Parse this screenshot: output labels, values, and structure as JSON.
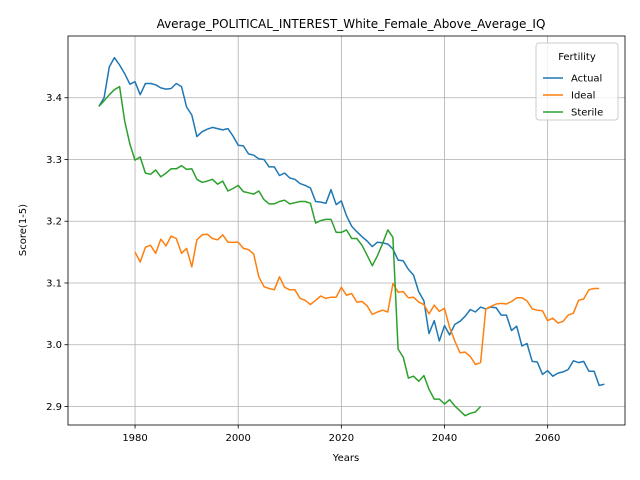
{
  "chart_data": {
    "type": "line",
    "title": "Average_POLITICAL_INTEREST_White_Female_Above_Average_IQ",
    "xlabel": "Years",
    "ylabel": "Score(1-5)",
    "xlim": [
      1967,
      2075
    ],
    "ylim": [
      2.87,
      3.5
    ],
    "xticks": [
      1980,
      2000,
      2020,
      2040,
      2060
    ],
    "yticks": [
      2.9,
      3.0,
      3.1,
      3.2,
      3.3,
      3.4
    ],
    "grid": true,
    "legend": {
      "title": "Fertility",
      "placement": "top-right"
    },
    "series": [
      {
        "name": "Actual",
        "color": "#1f77b4",
        "points": [
          [
            1973,
            3.386
          ],
          [
            1974,
            3.4
          ],
          [
            1975,
            3.45
          ],
          [
            1976,
            3.465
          ],
          [
            1977,
            3.453
          ],
          [
            1978,
            3.439
          ],
          [
            1979,
            3.422
          ],
          [
            1980,
            3.426
          ],
          [
            1981,
            3.405
          ],
          [
            1982,
            3.423
          ],
          [
            1983,
            3.423
          ],
          [
            1984,
            3.421
          ],
          [
            1985,
            3.416
          ],
          [
            1986,
            3.414
          ],
          [
            1987,
            3.415
          ],
          [
            1988,
            3.423
          ],
          [
            1989,
            3.418
          ],
          [
            1990,
            3.385
          ],
          [
            1991,
            3.372
          ],
          [
            1992,
            3.337
          ],
          [
            1993,
            3.345
          ],
          [
            1994,
            3.349
          ],
          [
            1995,
            3.352
          ],
          [
            1996,
            3.35
          ],
          [
            1997,
            3.348
          ],
          [
            1998,
            3.35
          ],
          [
            1999,
            3.338
          ],
          [
            2000,
            3.323
          ],
          [
            2001,
            3.322
          ],
          [
            2002,
            3.309
          ],
          [
            2003,
            3.307
          ],
          [
            2004,
            3.301
          ],
          [
            2005,
            3.3
          ],
          [
            2006,
            3.288
          ],
          [
            2007,
            3.288
          ],
          [
            2008,
            3.274
          ],
          [
            2009,
            3.278
          ],
          [
            2010,
            3.27
          ],
          [
            2011,
            3.268
          ],
          [
            2012,
            3.261
          ],
          [
            2013,
            3.258
          ],
          [
            2014,
            3.254
          ],
          [
            2015,
            3.232
          ],
          [
            2016,
            3.231
          ],
          [
            2017,
            3.229
          ],
          [
            2018,
            3.251
          ],
          [
            2019,
            3.227
          ],
          [
            2020,
            3.233
          ],
          [
            2021,
            3.209
          ],
          [
            2022,
            3.192
          ],
          [
            2023,
            3.183
          ],
          [
            2024,
            3.175
          ],
          [
            2025,
            3.168
          ],
          [
            2026,
            3.159
          ],
          [
            2027,
            3.166
          ],
          [
            2028,
            3.165
          ],
          [
            2029,
            3.163
          ],
          [
            2030,
            3.155
          ],
          [
            2031,
            3.137
          ],
          [
            2032,
            3.136
          ],
          [
            2033,
            3.122
          ],
          [
            2034,
            3.113
          ],
          [
            2035,
            3.086
          ],
          [
            2036,
            3.071
          ],
          [
            2037,
            3.018
          ],
          [
            2038,
            3.039
          ],
          [
            2039,
            3.006
          ],
          [
            2040,
            3.031
          ],
          [
            2041,
            3.016
          ],
          [
            2042,
            3.033
          ],
          [
            2043,
            3.038
          ],
          [
            2044,
            3.046
          ],
          [
            2045,
            3.057
          ],
          [
            2046,
            3.053
          ],
          [
            2047,
            3.061
          ],
          [
            2048,
            3.058
          ],
          [
            2049,
            3.061
          ],
          [
            2050,
            3.06
          ],
          [
            2051,
            3.048
          ],
          [
            2052,
            3.048
          ],
          [
            2053,
            3.023
          ],
          [
            2054,
            3.03
          ],
          [
            2055,
            2.998
          ],
          [
            2056,
            3.002
          ],
          [
            2057,
            2.973
          ],
          [
            2058,
            2.972
          ],
          [
            2059,
            2.952
          ],
          [
            2060,
            2.958
          ],
          [
            2061,
            2.949
          ],
          [
            2062,
            2.954
          ],
          [
            2063,
            2.956
          ],
          [
            2064,
            2.96
          ],
          [
            2065,
            2.974
          ],
          [
            2066,
            2.971
          ],
          [
            2067,
            2.973
          ],
          [
            2068,
            2.957
          ],
          [
            2069,
            2.957
          ],
          [
            2070,
            2.934
          ],
          [
            2071,
            2.936
          ]
        ]
      },
      {
        "name": "Ideal",
        "color": "#ff7f0e",
        "points": [
          [
            1980,
            3.15
          ],
          [
            1981,
            3.134
          ],
          [
            1982,
            3.158
          ],
          [
            1983,
            3.161
          ],
          [
            1984,
            3.148
          ],
          [
            1985,
            3.171
          ],
          [
            1986,
            3.16
          ],
          [
            1987,
            3.176
          ],
          [
            1988,
            3.172
          ],
          [
            1989,
            3.148
          ],
          [
            1990,
            3.156
          ],
          [
            1991,
            3.126
          ],
          [
            1992,
            3.17
          ],
          [
            1993,
            3.178
          ],
          [
            1994,
            3.179
          ],
          [
            1995,
            3.172
          ],
          [
            1996,
            3.17
          ],
          [
            1997,
            3.178
          ],
          [
            1998,
            3.166
          ],
          [
            1999,
            3.166
          ],
          [
            2000,
            3.166
          ],
          [
            2001,
            3.156
          ],
          [
            2002,
            3.154
          ],
          [
            2003,
            3.147
          ],
          [
            2004,
            3.11
          ],
          [
            2005,
            3.094
          ],
          [
            2006,
            3.091
          ],
          [
            2007,
            3.089
          ],
          [
            2008,
            3.11
          ],
          [
            2009,
            3.093
          ],
          [
            2010,
            3.089
          ],
          [
            2011,
            3.089
          ],
          [
            2012,
            3.075
          ],
          [
            2013,
            3.072
          ],
          [
            2014,
            3.065
          ],
          [
            2015,
            3.072
          ],
          [
            2016,
            3.079
          ],
          [
            2017,
            3.075
          ],
          [
            2018,
            3.077
          ],
          [
            2019,
            3.077
          ],
          [
            2020,
            3.093
          ],
          [
            2021,
            3.08
          ],
          [
            2022,
            3.083
          ],
          [
            2023,
            3.069
          ],
          [
            2024,
            3.07
          ],
          [
            2025,
            3.063
          ],
          [
            2026,
            3.049
          ],
          [
            2027,
            3.053
          ],
          [
            2028,
            3.056
          ],
          [
            2029,
            3.053
          ],
          [
            2030,
            3.099
          ],
          [
            2031,
            3.085
          ],
          [
            2032,
            3.086
          ],
          [
            2033,
            3.076
          ],
          [
            2034,
            3.077
          ],
          [
            2035,
            3.069
          ],
          [
            2036,
            3.065
          ],
          [
            2037,
            3.05
          ],
          [
            2038,
            3.064
          ],
          [
            2039,
            3.054
          ],
          [
            2040,
            3.059
          ],
          [
            2041,
            3.028
          ],
          [
            2042,
            3.006
          ],
          [
            2043,
            2.987
          ],
          [
            2044,
            2.988
          ],
          [
            2045,
            2.981
          ],
          [
            2046,
            2.968
          ],
          [
            2047,
            2.971
          ],
          [
            2048,
            3.058
          ],
          [
            2049,
            3.062
          ],
          [
            2050,
            3.066
          ],
          [
            2051,
            3.067
          ],
          [
            2052,
            3.066
          ],
          [
            2053,
            3.07
          ],
          [
            2054,
            3.076
          ],
          [
            2055,
            3.076
          ],
          [
            2056,
            3.071
          ],
          [
            2057,
            3.058
          ],
          [
            2058,
            3.056
          ],
          [
            2059,
            3.055
          ],
          [
            2060,
            3.039
          ],
          [
            2061,
            3.043
          ],
          [
            2062,
            3.035
          ],
          [
            2063,
            3.038
          ],
          [
            2064,
            3.048
          ],
          [
            2065,
            3.051
          ],
          [
            2066,
            3.072
          ],
          [
            2067,
            3.074
          ],
          [
            2068,
            3.089
          ],
          [
            2069,
            3.091
          ],
          [
            2070,
            3.091
          ]
        ]
      },
      {
        "name": "Sterile",
        "color": "#2ca02c",
        "points": [
          [
            1973,
            3.386
          ],
          [
            1974,
            3.395
          ],
          [
            1975,
            3.405
          ],
          [
            1976,
            3.413
          ],
          [
            1977,
            3.418
          ],
          [
            1978,
            3.362
          ],
          [
            1979,
            3.325
          ],
          [
            1980,
            3.299
          ],
          [
            1981,
            3.304
          ],
          [
            1982,
            3.278
          ],
          [
            1983,
            3.276
          ],
          [
            1984,
            3.283
          ],
          [
            1985,
            3.272
          ],
          [
            1986,
            3.278
          ],
          [
            1987,
            3.285
          ],
          [
            1988,
            3.285
          ],
          [
            1989,
            3.29
          ],
          [
            1990,
            3.284
          ],
          [
            1991,
            3.285
          ],
          [
            1992,
            3.268
          ],
          [
            1993,
            3.263
          ],
          [
            1994,
            3.265
          ],
          [
            1995,
            3.268
          ],
          [
            1996,
            3.26
          ],
          [
            1997,
            3.265
          ],
          [
            1998,
            3.249
          ],
          [
            1999,
            3.253
          ],
          [
            2000,
            3.258
          ],
          [
            2001,
            3.248
          ],
          [
            2002,
            3.246
          ],
          [
            2003,
            3.244
          ],
          [
            2004,
            3.249
          ],
          [
            2005,
            3.235
          ],
          [
            2006,
            3.228
          ],
          [
            2007,
            3.228
          ],
          [
            2008,
            3.232
          ],
          [
            2009,
            3.234
          ],
          [
            2010,
            3.228
          ],
          [
            2011,
            3.23
          ],
          [
            2012,
            3.232
          ],
          [
            2013,
            3.232
          ],
          [
            2014,
            3.229
          ],
          [
            2015,
            3.197
          ],
          [
            2016,
            3.201
          ],
          [
            2017,
            3.203
          ],
          [
            2018,
            3.203
          ],
          [
            2019,
            3.182
          ],
          [
            2020,
            3.182
          ],
          [
            2021,
            3.186
          ],
          [
            2022,
            3.172
          ],
          [
            2023,
            3.172
          ],
          [
            2024,
            3.161
          ],
          [
            2025,
            3.145
          ],
          [
            2026,
            3.128
          ],
          [
            2027,
            3.144
          ],
          [
            2028,
            3.164
          ],
          [
            2029,
            3.186
          ],
          [
            2030,
            3.174
          ],
          [
            2031,
            2.993
          ],
          [
            2032,
            2.98
          ],
          [
            2033,
            2.946
          ],
          [
            2034,
            2.949
          ],
          [
            2035,
            2.941
          ],
          [
            2036,
            2.95
          ],
          [
            2037,
            2.928
          ],
          [
            2038,
            2.912
          ],
          [
            2039,
            2.912
          ],
          [
            2040,
            2.904
          ],
          [
            2041,
            2.911
          ],
          [
            2042,
            2.901
          ],
          [
            2043,
            2.893
          ],
          [
            2044,
            2.885
          ],
          [
            2045,
            2.889
          ],
          [
            2046,
            2.891
          ],
          [
            2047,
            2.9
          ]
        ]
      }
    ]
  }
}
